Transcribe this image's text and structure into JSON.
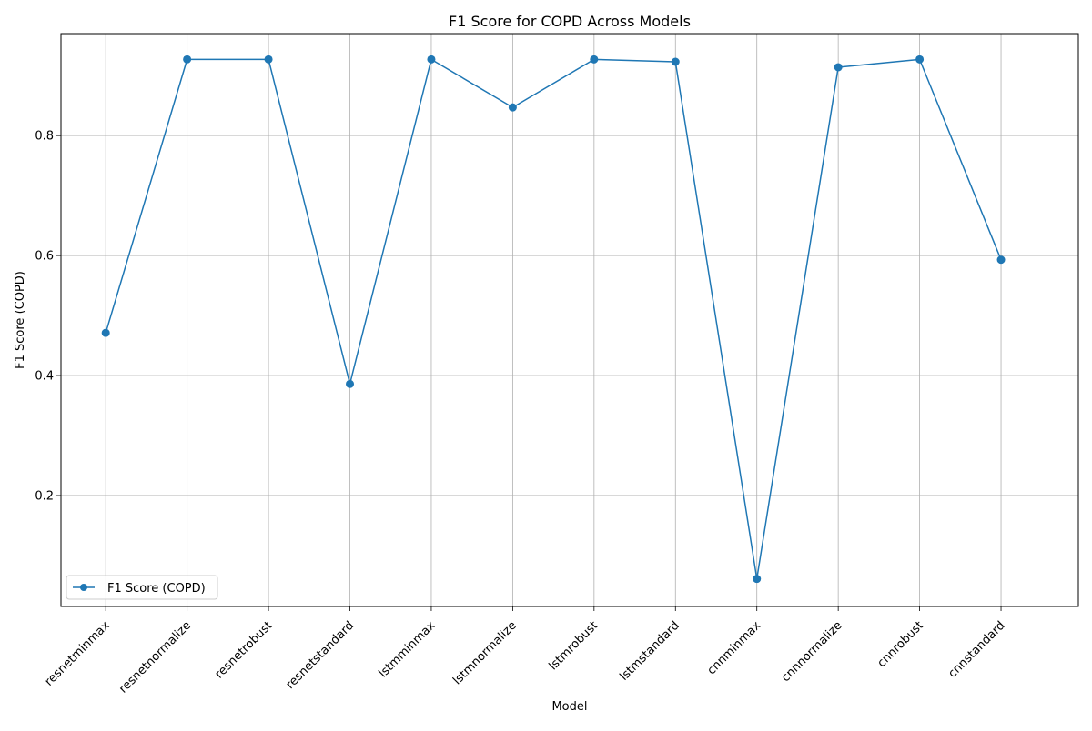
{
  "chart_data": {
    "type": "line",
    "title": "F1 Score for COPD Across Models",
    "xlabel": "Model",
    "ylabel": "F1 Score (COPD)",
    "categories": [
      "resnetminmax",
      "resnetnormalize",
      "resnetrobust",
      "resnetstandard",
      "lstmminmax",
      "lstmnormalize",
      "lstmrobust",
      "lstmstandard",
      "cnnminmax",
      "cnnnormalize",
      "cnnrobust",
      "cnnstandard"
    ],
    "series": [
      {
        "name": "F1 Score (COPD)",
        "color": "#1f77b4",
        "marker": "circle",
        "values": [
          0.471,
          0.927,
          0.927,
          0.386,
          0.927,
          0.847,
          0.927,
          0.923,
          0.061,
          0.914,
          0.927,
          0.593
        ]
      }
    ],
    "ylim": [
      0.015,
      0.97
    ],
    "yticks": [
      0.2,
      0.4,
      0.6,
      0.8
    ],
    "ytick_labels": [
      "0.2",
      "0.4",
      "0.6",
      "0.8"
    ],
    "grid": true,
    "legend": "lower-left"
  }
}
